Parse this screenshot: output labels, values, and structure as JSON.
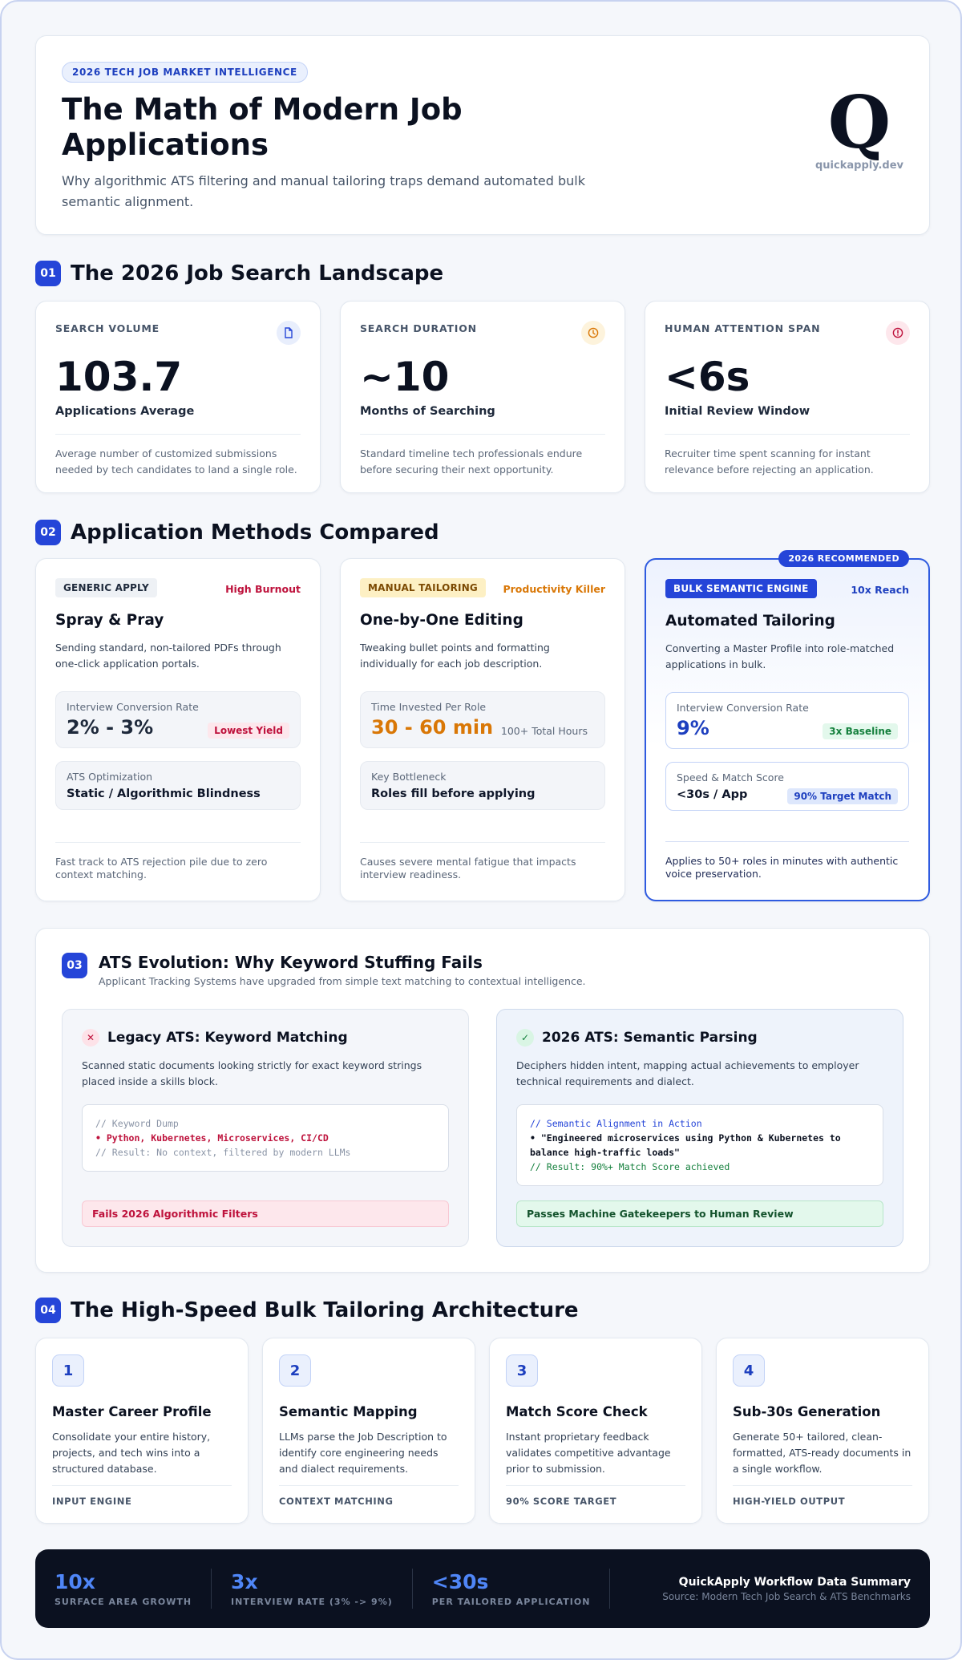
{
  "hero": {
    "eyebrow": "2026 TECH JOB MARKET INTELLIGENCE",
    "title": "The Math of Modern Job Applications",
    "subtitle": "Why algorithmic ATS filtering and manual tailoring traps demand automated bulk semantic alignment.",
    "logo_letter": "Q",
    "domain": "quickapply.dev"
  },
  "sections": {
    "s1": {
      "num": "01",
      "title": "The 2026 Job Search Landscape"
    },
    "s2": {
      "num": "02",
      "title": "Application Methods Compared"
    },
    "s3": {
      "num": "03",
      "title": "ATS Evolution: Why Keyword Stuffing Fails",
      "subtitle": "Applicant Tracking Systems have upgraded from simple text matching to contextual intelligence."
    },
    "s4": {
      "num": "04",
      "title": "The High-Speed Bulk Tailoring Architecture"
    }
  },
  "stats": [
    {
      "label": "SEARCH VOLUME",
      "icon": "document-icon",
      "value": "103.7",
      "caption": "Applications Average",
      "desc": "Average number of customized submissions needed by tech candidates to land a single role.",
      "color": "#2545d8"
    },
    {
      "label": "SEARCH DURATION",
      "icon": "clock-icon",
      "value": "~10",
      "caption": "Months of Searching",
      "desc": "Standard timeline tech professionals endure before securing their next opportunity.",
      "color": "#d97706"
    },
    {
      "label": "HUMAN ATTENTION SPAN",
      "icon": "alert-icon",
      "value": "<6s",
      "caption": "Initial Review Window",
      "desc": "Recruiter time spent scanning for instant relevance before rejecting an application.",
      "color": "#be123c"
    }
  ],
  "methods": [
    {
      "tag": "GENERIC APPLY",
      "warn": "High Burnout",
      "title": "Spray & Pray",
      "desc": "Sending standard, non-tailored PDFs through one-click application portals.",
      "box1_label": "Interview Conversion Rate",
      "box1_value": "2% - 3%",
      "box1_badge": "Lowest Yield",
      "box2_label": "ATS Optimization",
      "box2_value": "Static / Algorithmic Blindness",
      "foot": "Fast track to ATS rejection pile due to zero context matching."
    },
    {
      "tag": "MANUAL TAILORING",
      "warn": "Productivity Killer",
      "title": "One-by-One Editing",
      "desc": "Tweaking bullet points and formatting individually for each job description.",
      "box1_label": "Time Invested Per Role",
      "box1_value": "30 - 60 min",
      "box1_badge": "100+ Total Hours",
      "box2_label": "Key Bottleneck",
      "box2_value": "Roles fill before applying",
      "foot": "Causes severe mental fatigue that impacts interview readiness."
    },
    {
      "ribbon": "2026 RECOMMENDED",
      "tag": "BULK SEMANTIC ENGINE",
      "warn": "10x Reach",
      "title": "Automated Tailoring",
      "desc": "Converting a Master Profile into role-matched applications in bulk.",
      "box1_label": "Interview Conversion Rate",
      "box1_value": "9%",
      "box1_badge": "3x Baseline",
      "box2_label": "Speed & Match Score",
      "box2_value": "<30s / App",
      "box2_badge": "90% Target Match",
      "foot": "Applies to 50+ roles in minutes with authentic voice preservation."
    }
  ],
  "ats": {
    "legacy": {
      "title": "Legacy ATS: Keyword Matching",
      "desc": "Scanned static documents looking strictly for exact keyword strings placed inside a skills block.",
      "code": [
        "// Keyword Dump",
        "• Python, Kubernetes, Microservices, CI/CD",
        "// Result: No context, filtered by modern LLMs"
      ],
      "result": "Fails 2026 Algorithmic Filters"
    },
    "modern": {
      "title": "2026 ATS: Semantic Parsing",
      "desc": "Deciphers hidden intent, mapping actual achievements to employer technical requirements and dialect.",
      "code": [
        "// Semantic Alignment in Action",
        "• \"Engineered microservices using Python & Kubernetes to balance high-traffic loads\"",
        "// Result: 90%+ Match Score achieved"
      ],
      "result": "Passes Machine Gatekeepers to Human Review"
    }
  },
  "steps": [
    {
      "num": "1",
      "title": "Master Career Profile",
      "desc": "Consolidate your entire history, projects, and tech wins into a structured database.",
      "foot": "INPUT ENGINE"
    },
    {
      "num": "2",
      "title": "Semantic Mapping",
      "desc": "LLMs parse the Job Description to identify core engineering needs and dialect requirements.",
      "foot": "CONTEXT MATCHING"
    },
    {
      "num": "3",
      "title": "Match Score Check",
      "desc": "Instant proprietary feedback validates competitive advantage prior to submission.",
      "foot": "90% SCORE TARGET"
    },
    {
      "num": "4",
      "title": "Sub-30s Generation",
      "desc": "Generate 50+ tailored, clean-formatted, ATS-ready documents in a single workflow.",
      "foot": "HIGH-YIELD OUTPUT"
    }
  ],
  "summary": {
    "stats": [
      {
        "value": "10x",
        "label": "SURFACE AREA GROWTH"
      },
      {
        "value": "3x",
        "label": "INTERVIEW RATE (3% -> 9%)"
      },
      {
        "value": "<30s",
        "label": "PER TAILORED APPLICATION"
      }
    ],
    "title": "QuickApply Workflow Data Summary",
    "source": "Source: Modern Tech Job Search & ATS Benchmarks"
  }
}
